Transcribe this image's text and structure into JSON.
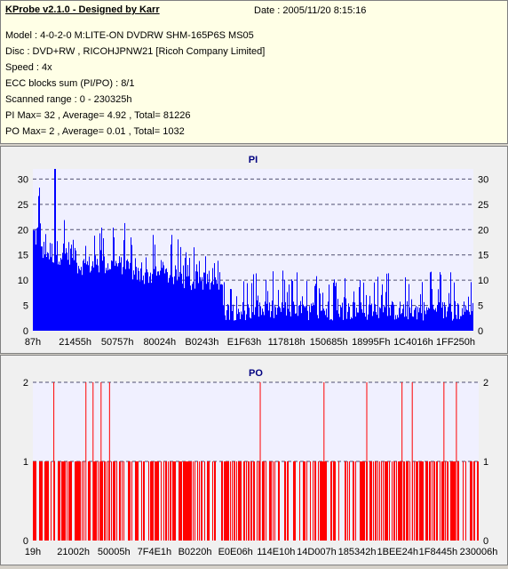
{
  "info": {
    "title": "KProbe v2.1.0 - Designed by Karr",
    "date": "Date : 2005/11/20 8:15:16",
    "lines": [
      "Model : 4-0-2-0 M:LITE-ON DVDRW SHM-165P6S MS05",
      "Disc : DVD+RW , RICOHJPNW21 [Ricoh Company Limited]",
      "Speed : 4x",
      "ECC blocks sum (PI/PO) : 8/1",
      "Scanned range : 0 - 230325h",
      "PI Max= 32 , Average= 4.92 , Total= 81226",
      "PO Max= 2 , Average= 0.01 , Total= 1032"
    ]
  },
  "colors": {
    "pi": "#0000ff",
    "po": "#ff0000",
    "plot_bg": "#f0f0ff",
    "grid": "#505070",
    "title": "#000080"
  },
  "chart_data": [
    {
      "type": "bar",
      "title": "PI",
      "ylim": [
        0,
        32
      ],
      "y_ticks": [
        0,
        5,
        10,
        15,
        20,
        25,
        30
      ],
      "x_tick_labels": [
        "87h",
        "21455h",
        "50757h",
        "80024h",
        "B0243h",
        "E1F63h",
        "117818h",
        "150685h",
        "18995Fh",
        "1C4016h",
        "1FF250h"
      ],
      "x_range": [
        "0h",
        "230325h"
      ],
      "segments": [
        {
          "x_frac": [
            0.0,
            0.02
          ],
          "max": 30,
          "min": 16,
          "base": 22
        },
        {
          "x_frac": [
            0.02,
            0.1
          ],
          "max": 25,
          "min": 13,
          "base": 18
        },
        {
          "x_frac": [
            0.1,
            0.22
          ],
          "max": 22,
          "min": 11,
          "base": 15
        },
        {
          "x_frac": [
            0.22,
            0.34
          ],
          "max": 19,
          "min": 9,
          "base": 13
        },
        {
          "x_frac": [
            0.34,
            0.4
          ],
          "max": 17,
          "min": 8,
          "base": 12
        },
        {
          "x_frac": [
            0.4,
            0.43
          ],
          "max": 14,
          "min": 7,
          "base": 10
        },
        {
          "x_frac": [
            0.43,
            1.0
          ],
          "max": 12,
          "min": 2,
          "base": 6
        }
      ],
      "peak": {
        "x_frac": 0.05,
        "value": 32
      },
      "grid": true,
      "legend": "none"
    },
    {
      "type": "bar",
      "title": "PO",
      "ylim": [
        0,
        2
      ],
      "y_ticks": [
        0,
        1,
        2
      ],
      "x_tick_labels": [
        "19h",
        "21002h",
        "50005h",
        "7F4E1h",
        "B0220h",
        "E0E06h",
        "114E10h",
        "14D007h",
        "185342h",
        "1BEE24h",
        "1F8445h",
        "230006h"
      ],
      "x_range": [
        "19h",
        "230006h"
      ],
      "twos_x_frac": [
        0.046,
        0.118,
        0.134,
        0.152,
        0.171,
        0.509,
        0.652,
        0.748,
        0.827,
        0.85,
        0.921,
        0.949
      ],
      "ones_density": 0.55,
      "grid": true,
      "legend": "none"
    }
  ]
}
